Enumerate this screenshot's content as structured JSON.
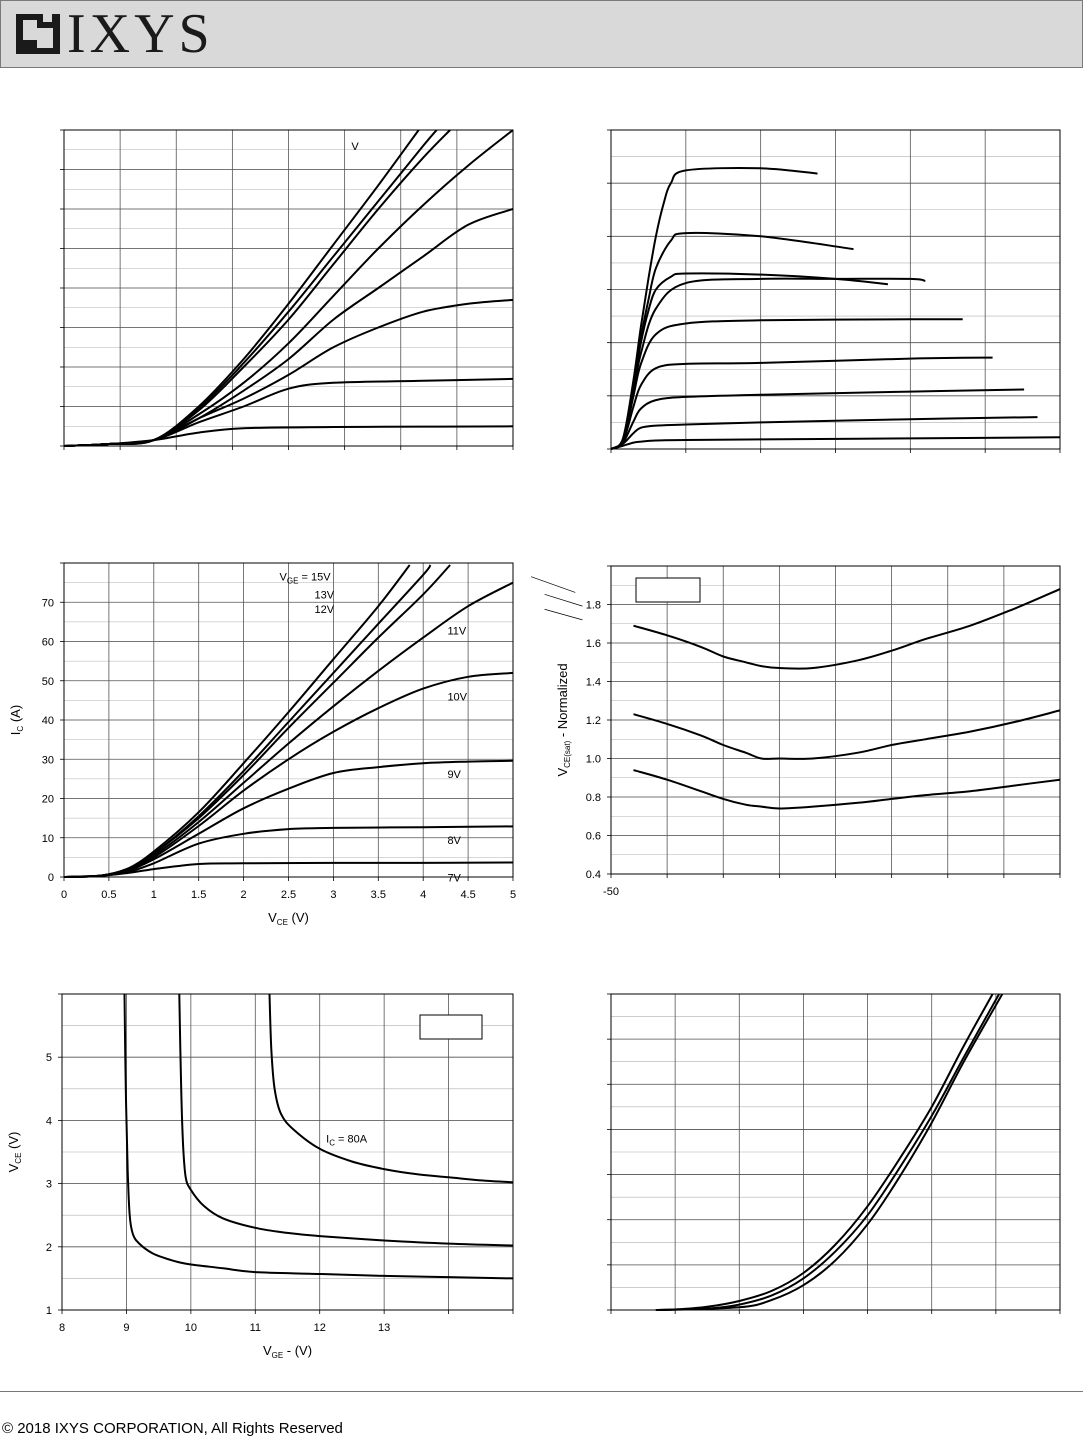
{
  "header": {
    "logo_text": "IXYS"
  },
  "footer": {
    "copyright": "© 2018 IXYS CORPORATION, All Rights Reserved"
  },
  "charts": [
    {
      "id": "fig1",
      "type": "line",
      "xlim": [
        0,
        5
      ],
      "ylim": [
        0,
        80
      ],
      "grid": true,
      "xticks": [],
      "yticks": [],
      "xlabel": "",
      "ylabel": "",
      "series": [
        {
          "name": "",
          "x": [
            0,
            0.5,
            1,
            1.5,
            2,
            3,
            4,
            4.2,
            5
          ],
          "y": [
            0,
            0.5,
            1.5,
            3.4,
            4.5,
            4.8,
            4.9,
            4.9,
            5
          ]
        },
        {
          "name": "",
          "x": [
            0,
            0.5,
            1,
            1.5,
            2,
            2.5,
            3,
            4,
            5
          ],
          "y": [
            0,
            0.5,
            1.5,
            6,
            10,
            14.5,
            16,
            16.5,
            17
          ]
        },
        {
          "name": "",
          "x": [
            0,
            0.5,
            1,
            1.5,
            2,
            2.5,
            3,
            3.5,
            4,
            4.5,
            5
          ],
          "y": [
            0,
            0.5,
            1.5,
            7,
            12,
            18,
            25,
            30,
            34,
            36,
            37
          ]
        },
        {
          "name": "",
          "x": [
            0,
            0.5,
            1,
            1.5,
            2,
            2.5,
            3,
            3.5,
            4,
            4.5,
            5
          ],
          "y": [
            0,
            0.5,
            1.5,
            7,
            14,
            22,
            32,
            40,
            48,
            56,
            60
          ]
        },
        {
          "name": "",
          "x": [
            0,
            0.5,
            1,
            1.5,
            2,
            2.5,
            3,
            3.5,
            4,
            4.5,
            5
          ],
          "y": [
            0,
            0.5,
            1.5,
            8,
            16,
            26,
            38,
            50,
            61,
            71,
            80
          ]
        },
        {
          "name": "",
          "x": [
            0,
            0.5,
            1,
            1.5,
            2,
            2.5,
            3,
            3.5,
            4,
            4.3
          ],
          "y": [
            0,
            0.5,
            1.5,
            9,
            20,
            32,
            46,
            60,
            73,
            80
          ]
        },
        {
          "name": "",
          "x": [
            0,
            0.5,
            1,
            1.5,
            2,
            2.5,
            3,
            3.5,
            4,
            4.15
          ],
          "y": [
            0,
            0.5,
            1.5,
            9.5,
            21,
            34,
            48,
            62,
            76,
            80
          ]
        },
        {
          "name": "",
          "x": [
            0,
            0.5,
            1,
            1.5,
            2,
            2.5,
            3,
            3.5,
            3.95
          ],
          "y": [
            0,
            0.5,
            1.5,
            10,
            22,
            36,
            51,
            66,
            80
          ]
        }
      ],
      "annotations": [
        {
          "text": "V",
          "x": 3.2,
          "y": 75
        }
      ]
    },
    {
      "id": "fig2",
      "type": "line",
      "xlim": [
        0,
        30
      ],
      "ylim": [
        0,
        300
      ],
      "grid": true,
      "xticks": [],
      "yticks": [],
      "xlabel": "",
      "ylabel": "",
      "series": [
        {
          "name": "",
          "x": [
            0,
            0.8,
            1.5,
            2,
            3,
            5,
            10,
            20,
            30
          ],
          "y": [
            0,
            3,
            6,
            7,
            8,
            8.5,
            9,
            10,
            11
          ]
        },
        {
          "name": "",
          "x": [
            0,
            0.8,
            1.5,
            2,
            3,
            5,
            10,
            20,
            28.5
          ],
          "y": [
            0,
            5,
            15,
            20,
            22,
            23,
            25,
            28,
            30
          ]
        },
        {
          "name": "",
          "x": [
            0,
            0.8,
            1.5,
            2,
            3,
            5,
            10,
            20,
            27.6
          ],
          "y": [
            0,
            6,
            26,
            38,
            46,
            49,
            51,
            54,
            56
          ]
        },
        {
          "name": "",
          "x": [
            0,
            0.8,
            1.5,
            2,
            3,
            5,
            10,
            20,
            25.5
          ],
          "y": [
            0,
            7,
            40,
            60,
            76,
            80,
            81,
            85,
            86
          ]
        },
        {
          "name": "",
          "x": [
            0,
            0.8,
            1.5,
            2,
            3,
            5,
            10,
            20,
            23.5
          ],
          "y": [
            0,
            8,
            50,
            80,
            108,
            118,
            121,
            122,
            122
          ]
        },
        {
          "name": "",
          "x": [
            0,
            0.8,
            1.5,
            2,
            3,
            5,
            10,
            15,
            20,
            21
          ],
          "y": [
            0,
            8,
            55,
            90,
            132,
            156,
            160,
            160,
            160,
            158
          ]
        },
        {
          "name": "",
          "x": [
            0,
            0.8,
            1.5,
            2,
            2.5,
            3,
            4,
            5,
            10,
            15,
            18.5
          ],
          "y": [
            0,
            9,
            60,
            100,
            130,
            150,
            162,
            165,
            164,
            160,
            155
          ]
        },
        {
          "name": "",
          "x": [
            0,
            0.8,
            1.5,
            2,
            2.5,
            3,
            4,
            5,
            10,
            16.2
          ],
          "y": [
            0,
            9,
            62,
            105,
            140,
            170,
            196,
            203,
            200,
            188
          ]
        },
        {
          "name": "",
          "x": [
            0,
            0.8,
            1.5,
            2,
            2.5,
            3,
            3.5,
            4,
            5,
            10,
            13.8
          ],
          "y": [
            0,
            10,
            65,
            115,
            160,
            200,
            230,
            250,
            262,
            264,
            259
          ]
        }
      ]
    },
    {
      "id": "fig3",
      "type": "line",
      "xlim": [
        0,
        5
      ],
      "ylim": [
        0,
        80
      ],
      "grid": true,
      "xticks": [
        "0",
        "0.5",
        "1",
        "1.5",
        "2",
        "2.5",
        "3",
        "3.5",
        "4",
        "4.5",
        "5"
      ],
      "yticks": [
        "0",
        "10",
        "20",
        "30",
        "40",
        "50",
        "60",
        "70"
      ],
      "xlabel": "V",
      "xlabel_sub": "CE",
      "xlabel_unit": " (V)",
      "ylabel": "I",
      "ylabel_sub": "C",
      "ylabel_unit": " (A)",
      "series": [
        {
          "name": "7V",
          "x": [
            0,
            0.4,
            0.7,
            1,
            1.5,
            2,
            3,
            4,
            5
          ],
          "y": [
            0,
            0.3,
            1,
            2,
            3.3,
            3.5,
            3.6,
            3.6,
            3.7
          ]
        },
        {
          "name": "8V",
          "x": [
            0,
            0.4,
            0.7,
            1,
            1.5,
            2,
            2.5,
            3,
            4,
            5
          ],
          "y": [
            0,
            0.3,
            1.2,
            3.5,
            8.5,
            11,
            12.2,
            12.5,
            12.7,
            12.9
          ]
        },
        {
          "name": "9V",
          "x": [
            0,
            0.4,
            0.7,
            1,
            1.5,
            2,
            2.5,
            3,
            3.5,
            4,
            4.5,
            5
          ],
          "y": [
            0,
            0.3,
            1.5,
            4.5,
            11,
            17.5,
            22.5,
            26.5,
            28,
            29,
            29.4,
            29.6
          ]
        },
        {
          "name": "10V",
          "x": [
            0,
            0.4,
            0.7,
            1,
            1.5,
            2,
            2.5,
            3,
            3.5,
            4,
            4.5,
            5
          ],
          "y": [
            0,
            0.3,
            1.8,
            5,
            13,
            22,
            30,
            37,
            43,
            48,
            51,
            52
          ]
        },
        {
          "name": "11V",
          "x": [
            0,
            0.4,
            0.7,
            1,
            1.5,
            2,
            2.5,
            3,
            3.5,
            4,
            4.5,
            5
          ],
          "y": [
            0,
            0.3,
            2,
            5.5,
            14,
            24,
            34,
            43.5,
            52.5,
            61,
            69,
            75
          ]
        },
        {
          "name": "12V",
          "x": [
            0,
            0.4,
            0.7,
            1,
            1.5,
            2,
            2.5,
            3,
            3.5,
            4,
            4.3
          ],
          "y": [
            0,
            0.3,
            2,
            6,
            15,
            26,
            38,
            49.5,
            61,
            72,
            79.5
          ]
        },
        {
          "name": "13V",
          "x": [
            0,
            0.4,
            0.7,
            1,
            1.5,
            2,
            2.5,
            3,
            3.5,
            4,
            4.08
          ],
          "y": [
            0,
            0.3,
            2,
            6,
            15.5,
            27,
            39.5,
            52,
            64.5,
            77,
            79.5
          ]
        },
        {
          "name": "15V",
          "x": [
            0,
            0.4,
            0.7,
            1,
            1.5,
            2,
            2.5,
            3,
            3.5,
            3.85
          ],
          "y": [
            0,
            0.3,
            2,
            6.5,
            16.5,
            29,
            42,
            55.5,
            69,
            79.5
          ]
        }
      ],
      "labels": [
        {
          "text": "V",
          "sub": "GE",
          "rest": " = 15V",
          "x": 2.4,
          "y": 75.5
        },
        {
          "text": "13V",
          "x": 2.79,
          "y": 71
        },
        {
          "text": "12V",
          "x": 2.79,
          "y": 67.2
        },
        {
          "text": "11V",
          "x": 4.27,
          "y": 61.8
        },
        {
          "text": "10V",
          "x": 4.27,
          "y": 45
        },
        {
          "text": "9V",
          "x": 4.27,
          "y": 25.2
        },
        {
          "text": "8V",
          "x": 4.27,
          "y": 8.4
        },
        {
          "text": "7V",
          "x": 4.27,
          "y": -1.2
        }
      ]
    },
    {
      "id": "fig4",
      "type": "line",
      "xlim": [
        -50,
        150
      ],
      "ylim": [
        0.4,
        2.0
      ],
      "grid": true,
      "xticks": [
        "-50"
      ],
      "yticks": [
        "0.4",
        "0.6",
        "0.8",
        "1.0",
        "1.2",
        "1.4",
        "1.6",
        "1.8"
      ],
      "xlabel": "",
      "ylabel": "V",
      "ylabel_sub": "CE(sat)",
      "ylabel_unit": " - Normalized",
      "series": [
        {
          "name": "",
          "x": [
            -40,
            -25,
            -10,
            0,
            10,
            17,
            25,
            40,
            60,
            75,
            90,
            110,
            130,
            150
          ],
          "y": [
            1.69,
            1.64,
            1.58,
            1.53,
            1.5,
            1.48,
            1.47,
            1.47,
            1.51,
            1.56,
            1.62,
            1.69,
            1.78,
            1.88
          ]
        },
        {
          "name": "",
          "x": [
            -40,
            -25,
            -10,
            0,
            10,
            17,
            25,
            40,
            60,
            75,
            90,
            110,
            130,
            150
          ],
          "y": [
            1.23,
            1.18,
            1.12,
            1.07,
            1.03,
            1.0,
            1.0,
            1.0,
            1.03,
            1.07,
            1.1,
            1.14,
            1.19,
            1.25
          ]
        },
        {
          "name": "",
          "x": [
            -40,
            -25,
            -10,
            0,
            10,
            17,
            25,
            40,
            60,
            75,
            90,
            110,
            130,
            150
          ],
          "y": [
            0.94,
            0.89,
            0.83,
            0.79,
            0.76,
            0.75,
            0.74,
            0.75,
            0.77,
            0.79,
            0.81,
            0.83,
            0.86,
            0.89
          ]
        }
      ]
    },
    {
      "id": "fig5",
      "type": "line",
      "xlim": [
        8,
        15
      ],
      "ylim": [
        1,
        6
      ],
      "grid": true,
      "xticks": [
        "8",
        "9",
        "10",
        "11",
        "12",
        "13"
      ],
      "yticks": [
        "1",
        "2",
        "3",
        "4",
        "5"
      ],
      "xlabel": "V",
      "xlabel_sub": "GE",
      "xlabel_unit": " - (V)",
      "ylabel": "V",
      "ylabel_sub": "CE",
      "ylabel_unit": " (V)",
      "series": [
        {
          "name": "",
          "x": [
            8.97,
            8.99,
            9.02,
            9.05,
            9.1,
            9.2,
            9.4,
            9.6,
            9.8,
            10,
            10.5,
            11,
            12,
            13,
            14,
            15
          ],
          "y": [
            6,
            4.5,
            3.2,
            2.5,
            2.2,
            2.05,
            1.9,
            1.82,
            1.76,
            1.72,
            1.66,
            1.6,
            1.57,
            1.54,
            1.52,
            1.5
          ]
        },
        {
          "name": "",
          "x": [
            9.82,
            9.85,
            9.88,
            9.92,
            10,
            10.2,
            10.5,
            11,
            11.5,
            12,
            13,
            14,
            15
          ],
          "y": [
            6,
            4.5,
            3.6,
            3.1,
            2.9,
            2.65,
            2.45,
            2.3,
            2.22,
            2.17,
            2.1,
            2.05,
            2.02
          ]
        },
        {
          "name": "I",
          "x": [
            11.22,
            11.25,
            11.3,
            11.4,
            11.6,
            12,
            12.5,
            13,
            13.5,
            14,
            14.5,
            15
          ],
          "y": [
            6,
            5.1,
            4.5,
            4.1,
            3.85,
            3.55,
            3.35,
            3.23,
            3.15,
            3.1,
            3.05,
            3.02
          ]
        }
      ],
      "labels": [
        {
          "text": "I",
          "sub": "C",
          "rest": " = 80A",
          "x": 12.1,
          "y": 3.65
        }
      ]
    },
    {
      "id": "fig6",
      "type": "line",
      "xlim": [
        0,
        7
      ],
      "ylim": [
        0,
        7
      ],
      "grid": true,
      "xticks": [],
      "yticks": [],
      "xlabel": "",
      "ylabel": "",
      "series": [
        {
          "name": "",
          "x": [
            0.7,
            1.0,
            1.5,
            2.0,
            2.5,
            3.0,
            3.5,
            4.0,
            4.5,
            5.0,
            5.5,
            5.95
          ],
          "y": [
            0,
            0.01,
            0.07,
            0.2,
            0.42,
            0.82,
            1.45,
            2.3,
            3.35,
            4.5,
            5.85,
            7
          ]
        },
        {
          "name": "",
          "x": [
            0.7,
            1.5,
            2.0,
            2.5,
            3.0,
            3.5,
            4.0,
            4.5,
            5.0,
            5.5,
            6.05
          ],
          "y": [
            0,
            0.03,
            0.12,
            0.32,
            0.7,
            1.3,
            2.1,
            3.15,
            4.3,
            5.6,
            7
          ]
        },
        {
          "name": "",
          "x": [
            0.7,
            2.0,
            2.5,
            3.0,
            3.5,
            4.0,
            4.5,
            5.0,
            5.5,
            6.1
          ],
          "y": [
            0,
            0.06,
            0.22,
            0.55,
            1.1,
            1.9,
            2.95,
            4.15,
            5.5,
            7
          ]
        }
      ]
    }
  ]
}
